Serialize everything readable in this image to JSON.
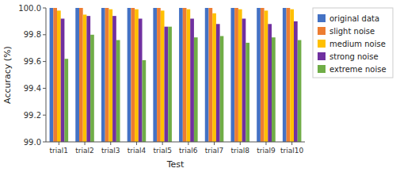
{
  "chart_data": {
    "type": "bar",
    "xlabel": "Test",
    "ylabel": "Accuracy (%)",
    "categories": [
      "trial1",
      "trial2",
      "trial3",
      "trial4",
      "trial5",
      "trial6",
      "trial7",
      "trial8",
      "trial9",
      "trial10"
    ],
    "series": [
      {
        "name": "original data",
        "color": "#4472C4",
        "values": [
          100.0,
          100.0,
          100.0,
          100.0,
          100.0,
          100.0,
          100.0,
          100.0,
          100.0,
          100.0
        ]
      },
      {
        "name": "slight noise",
        "color": "#ED7D31",
        "values": [
          100.0,
          100.0,
          100.0,
          100.0,
          100.0,
          100.0,
          100.0,
          100.0,
          100.0,
          100.0
        ]
      },
      {
        "name": "medium noise",
        "color": "#FFC000",
        "values": [
          99.98,
          99.95,
          99.99,
          99.99,
          99.98,
          99.99,
          99.96,
          99.99,
          99.98,
          99.99
        ]
      },
      {
        "name": "strong noise",
        "color": "#7030A0",
        "values": [
          99.92,
          99.94,
          99.94,
          99.92,
          99.86,
          99.92,
          99.88,
          99.92,
          99.88,
          99.9
        ]
      },
      {
        "name": "extreme noise",
        "color": "#70AD47",
        "values": [
          99.62,
          99.8,
          99.76,
          99.61,
          99.86,
          99.78,
          99.79,
          99.74,
          99.78,
          99.76
        ]
      }
    ],
    "ylim": [
      99.0,
      100.0
    ],
    "yticks": [
      {
        "value": 99.0,
        "label": "99.0"
      },
      99.2,
      99.4,
      99.6,
      99.8,
      {
        "value": 100.0,
        "label": "100.0"
      }
    ],
    "grid": false,
    "legend": "right"
  }
}
